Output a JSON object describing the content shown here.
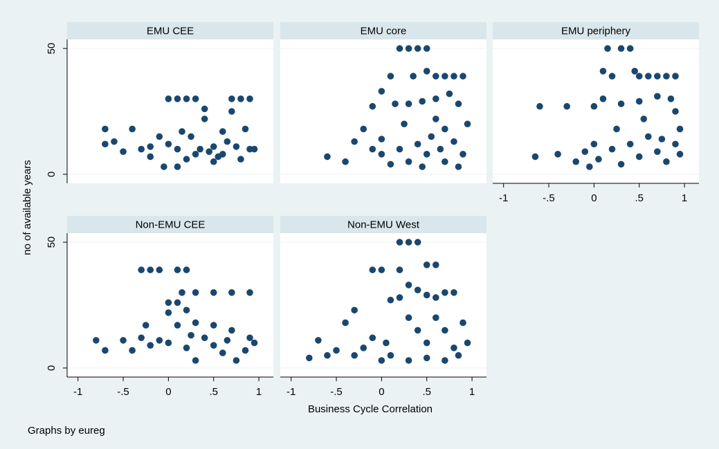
{
  "chart_data": [
    {
      "type": "scatter",
      "title": "EMU CEE",
      "color": "#1a476f",
      "xlim": [
        -1.12,
        1.16
      ],
      "ylim": [
        -3.6,
        53.6
      ],
      "yticks": [
        0,
        50
      ],
      "grid": true,
      "x": [
        -0.7,
        -0.7,
        -0.6,
        -0.4,
        -0.3,
        -0.2,
        -0.1,
        0,
        0.1,
        0.2,
        0.3,
        0.4,
        0.4,
        0.5,
        0.6,
        0.65,
        0.7,
        0.8,
        0.9,
        0.85,
        0.9,
        0.95,
        0.5,
        0.3,
        0.1,
        0,
        -0.05,
        0.1,
        0.2,
        0.35,
        0.45,
        0.6,
        0.75,
        0.8,
        -0.5,
        -0.2,
        0.25,
        0.7,
        0.55,
        0.15
      ],
      "values": [
        18,
        12,
        13,
        18,
        10,
        7,
        15,
        30,
        30,
        30,
        30,
        26,
        22,
        11,
        17,
        13,
        30,
        30,
        30,
        18,
        10,
        10,
        5,
        8,
        10,
        12,
        3,
        3,
        6,
        10,
        9,
        8,
        11,
        6,
        9,
        11,
        15,
        25,
        7,
        17
      ]
    },
    {
      "type": "scatter",
      "title": "EMU core",
      "color": "#1a476f",
      "xlim": [
        -1.12,
        1.16
      ],
      "ylim": [
        -3.6,
        53.6
      ],
      "yticks": [
        0,
        50
      ],
      "grid": true,
      "x": [
        -0.6,
        -0.4,
        -0.3,
        -0.2,
        -0.1,
        0,
        0,
        0.1,
        0.2,
        0.3,
        0.35,
        0.4,
        0.5,
        0.5,
        0.6,
        0.7,
        0.8,
        0.9,
        0.15,
        0.3,
        0.45,
        0.6,
        0.75,
        0.85,
        0.2,
        0.3,
        0.4,
        0.5,
        0.55,
        0.65,
        0.7,
        0.8,
        0.9,
        0.95,
        0.1,
        0,
        -0.1,
        0.25,
        0.6,
        0.85,
        0.45,
        0.7
      ],
      "values": [
        7,
        5,
        13,
        18,
        27,
        14,
        33,
        39,
        50,
        50,
        39,
        50,
        41,
        50,
        39,
        39,
        39,
        39,
        28,
        28,
        29,
        30,
        32,
        28,
        10,
        5,
        12,
        8,
        15,
        10,
        5,
        13,
        8,
        20,
        4,
        8,
        10,
        20,
        22,
        3,
        3,
        18
      ]
    },
    {
      "type": "scatter",
      "title": "EMU periphery",
      "color": "#1a476f",
      "xlim": [
        -1.12,
        1.16
      ],
      "ylim": [
        -3.6,
        53.6
      ],
      "xticks": [
        -1,
        {
          "value": -0.5,
          "label": "-.5"
        },
        0,
        {
          "value": 0.5,
          "label": ".5"
        },
        1
      ],
      "yticks": [
        0,
        50
      ],
      "grid": true,
      "x": [
        -0.65,
        -0.6,
        -0.4,
        -0.3,
        -0.2,
        -0.1,
        0,
        0,
        0.1,
        0.15,
        0.2,
        0.3,
        0.4,
        0.45,
        0.5,
        0.6,
        0.7,
        0.8,
        0.9,
        0.1,
        0.3,
        0.5,
        0.7,
        0.85,
        0.9,
        0.95,
        0.2,
        0.3,
        0.4,
        0.5,
        0.6,
        0.7,
        0.8,
        0.9,
        0.05,
        0.25,
        0.55,
        0.75,
        0.95,
        -0.05
      ],
      "values": [
        7,
        27,
        8,
        27,
        5,
        9,
        12,
        27,
        41,
        50,
        39,
        50,
        50,
        41,
        39,
        39,
        39,
        39,
        39,
        30,
        28,
        29,
        31,
        30,
        25,
        18,
        10,
        4,
        12,
        7,
        15,
        9,
        5,
        12,
        6,
        18,
        22,
        14,
        8,
        3
      ]
    },
    {
      "type": "scatter",
      "title": "Non-EMU CEE",
      "color": "#1a476f",
      "xlim": [
        -1.12,
        1.16
      ],
      "ylim": [
        -3.6,
        53.6
      ],
      "xticks": [
        -1,
        {
          "value": -0.5,
          "label": "-.5"
        },
        0,
        {
          "value": 0.5,
          "label": ".5"
        },
        1
      ],
      "yticks": [
        0,
        50
      ],
      "grid": true,
      "x": [
        -0.8,
        -0.7,
        -0.5,
        -0.4,
        -0.3,
        -0.2,
        -0.1,
        0.1,
        0.2,
        -0.3,
        -0.25,
        -0.2,
        0,
        0,
        0.1,
        0.2,
        0.15,
        0.3,
        0.5,
        0.7,
        0.9,
        0.1,
        0.3,
        0.5,
        0.7,
        0.9,
        0.95,
        0,
        0.2,
        0.3,
        0.4,
        0.5,
        0.6,
        0.75,
        0.85,
        -0.1,
        0.25,
        0.65
      ],
      "values": [
        11,
        7,
        11,
        7,
        39,
        39,
        39,
        39,
        39,
        12,
        17,
        9,
        26,
        22,
        26,
        23,
        30,
        30,
        30,
        30,
        30,
        17,
        18,
        17,
        15,
        12,
        10,
        10,
        8,
        3,
        12,
        9,
        6,
        3,
        7,
        11,
        13,
        11
      ]
    },
    {
      "type": "scatter",
      "title": "Non-EMU West",
      "color": "#1a476f",
      "xlim": [
        -1.12,
        1.16
      ],
      "ylim": [
        -3.6,
        53.6
      ],
      "xticks": [
        -1,
        {
          "value": -0.5,
          "label": "-.5"
        },
        0,
        {
          "value": 0.5,
          "label": ".5"
        },
        1
      ],
      "yticks": [
        0,
        50
      ],
      "grid": true,
      "x": [
        -0.8,
        -0.7,
        -0.6,
        -0.5,
        -0.4,
        -0.3,
        -0.2,
        -0.1,
        0,
        -0.1,
        0,
        0.1,
        0.2,
        0.2,
        0.3,
        0.4,
        0.5,
        0.6,
        0.3,
        0.4,
        0.5,
        0.6,
        0.7,
        0.8,
        0.2,
        0.3,
        0.4,
        0.5,
        0.6,
        0.7,
        0.8,
        0.9,
        0.95,
        0.1,
        0.3,
        0.5,
        0.7,
        0.85,
        -0.3,
        0.05
      ],
      "values": [
        4,
        11,
        5,
        7,
        18,
        5,
        8,
        12,
        3,
        39,
        39,
        27,
        39,
        50,
        50,
        50,
        41,
        41,
        33,
        31,
        29,
        28,
        30,
        30,
        28,
        20,
        15,
        10,
        20,
        15,
        8,
        18,
        10,
        5,
        3,
        4,
        3,
        5,
        23,
        10
      ]
    }
  ],
  "y_axis_title": "no of available years",
  "x_axis_title": "Business Cycle Correlation",
  "note": "Graphs by eureg"
}
